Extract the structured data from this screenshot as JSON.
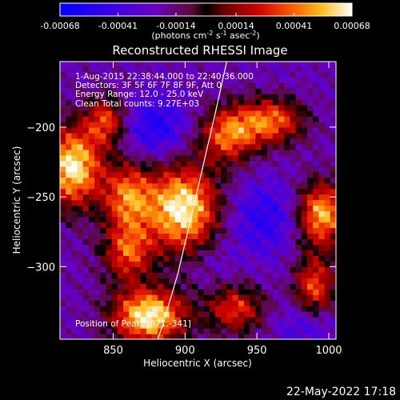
{
  "colorbar": {
    "ticks": [
      "-0.00068",
      "-0.00041",
      "-0.00014",
      "0.00014",
      "0.00041",
      "0.00068"
    ],
    "tick_values": [
      -0.00068,
      -0.00041,
      -0.00014,
      0.00014,
      0.00041,
      0.00068
    ],
    "range": [
      -0.00068,
      0.00068
    ],
    "units_main": "(photons cm",
    "units_exp1": "-2",
    "units_mid": " s",
    "units_exp2": "-1",
    "units_end": " asec",
    "units_exp3": "-2",
    "units_close": ")"
  },
  "chart_data": {
    "type": "heatmap",
    "title": "Reconstructed RHESSI Image",
    "xlabel": "Heliocentric X (arcsec)",
    "ylabel": "Heliocentric Y (arcsec)",
    "xlim": [
      813,
      1005
    ],
    "ylim": [
      -352,
      -153
    ],
    "xticks": [
      850,
      900,
      950,
      1000
    ],
    "yticks": [
      -200,
      -250,
      -300
    ],
    "xtick_labels": [
      "850",
      "900",
      "950",
      "1000"
    ],
    "ytick_labels": [
      "−200",
      "−250",
      "−300"
    ],
    "colormap": "blue-purple-red-yellow-white",
    "annotations": [
      "1-Aug-2015 22:38:44.000  to 22:40:36.000",
      "Detectors: 3F 5F 6F 7F 8F 9F, Att 0",
      "Energy Range: 12.0 - 25.0 keV",
      "Clean    Total counts: 9.27E+03",
      "Position of Peak: [871,-341]"
    ],
    "peak": {
      "x": 871,
      "y": -341
    },
    "limb_curve": [
      [
        929,
        -153
      ],
      [
        921,
        -190
      ],
      [
        912,
        -230
      ],
      [
        903,
        -270
      ],
      [
        895,
        -305
      ],
      [
        885,
        -340
      ],
      [
        881,
        -352
      ]
    ],
    "hot_spots": [
      {
        "x": 898,
        "y": -258,
        "value": 0.00068,
        "sx": 18,
        "sy": 22
      },
      {
        "x": 875,
        "y": -335,
        "value": 0.00068,
        "sx": 18,
        "sy": 14
      },
      {
        "x": 822,
        "y": -228,
        "value": 0.00066,
        "sx": 14,
        "sy": 20
      },
      {
        "x": 995,
        "y": -262,
        "value": 0.00055,
        "sx": 12,
        "sy": 16
      },
      {
        "x": 860,
        "y": -250,
        "value": 0.0004,
        "sx": 12,
        "sy": 18
      },
      {
        "x": 930,
        "y": -205,
        "value": 0.0004,
        "sx": 14,
        "sy": 14
      },
      {
        "x": 960,
        "y": -195,
        "value": 0.0004,
        "sx": 16,
        "sy": 12
      },
      {
        "x": 990,
        "y": -315,
        "value": 0.00036,
        "sx": 10,
        "sy": 16
      },
      {
        "x": 845,
        "y": -195,
        "value": 0.00032,
        "sx": 10,
        "sy": 12
      },
      {
        "x": 935,
        "y": -330,
        "value": 0.0003,
        "sx": 14,
        "sy": 12
      },
      {
        "x": 860,
        "y": -290,
        "value": 0.00032,
        "sx": 12,
        "sy": 14
      }
    ],
    "cold_spots": [
      {
        "x": 880,
        "y": -200,
        "value": -0.00055,
        "sx": 16,
        "sy": 16
      },
      {
        "x": 955,
        "y": -265,
        "value": -0.0005,
        "sx": 18,
        "sy": 18
      },
      {
        "x": 985,
        "y": -340,
        "value": -0.00045,
        "sx": 14,
        "sy": 12
      },
      {
        "x": 918,
        "y": -295,
        "value": -0.0003,
        "sx": 12,
        "sy": 12
      },
      {
        "x": 965,
        "y": -170,
        "value": -0.00025,
        "sx": 14,
        "sy": 10
      },
      {
        "x": 830,
        "y": -300,
        "value": -0.0002,
        "sx": 10,
        "sy": 16
      }
    ]
  },
  "footer": {
    "date": "22-May-2022 17:18"
  }
}
